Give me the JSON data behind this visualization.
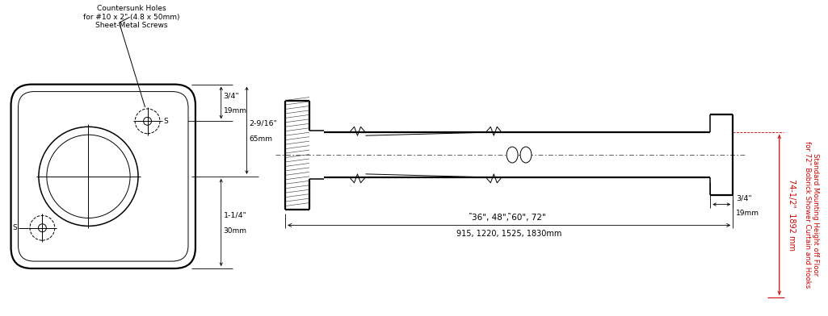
{
  "bg_color": "#ffffff",
  "line_color": "#000000",
  "red_color": "#cc0000",
  "annotation_note": "Countersunk Holes\nfor #10 x 2\" (4.8 x 50mm)\nSheet-Metal Screws",
  "dim_3_4": "3/4\"",
  "dim_19mm": "19mm",
  "dim_2_9_16": "2-9/16\"",
  "dim_65mm": "65mm",
  "dim_1_1_4": "1-1/4\"",
  "dim_30mm": "30mm",
  "dim_length": "̃36\", 48\", ̃60\", 72\"",
  "dim_length_mm": "915, 1220, 1525, 1830mm",
  "dim_end": "3/4\"",
  "dim_end_mm": "19mm",
  "dim_height": "74-1/2\"  1892 mm",
  "dim_height_label": "Standard Mounting Height off Floor\nfor 72\" Bobrick Shower Curtain and Hooks",
  "label_S_top": "S",
  "label_S_bot": "S"
}
